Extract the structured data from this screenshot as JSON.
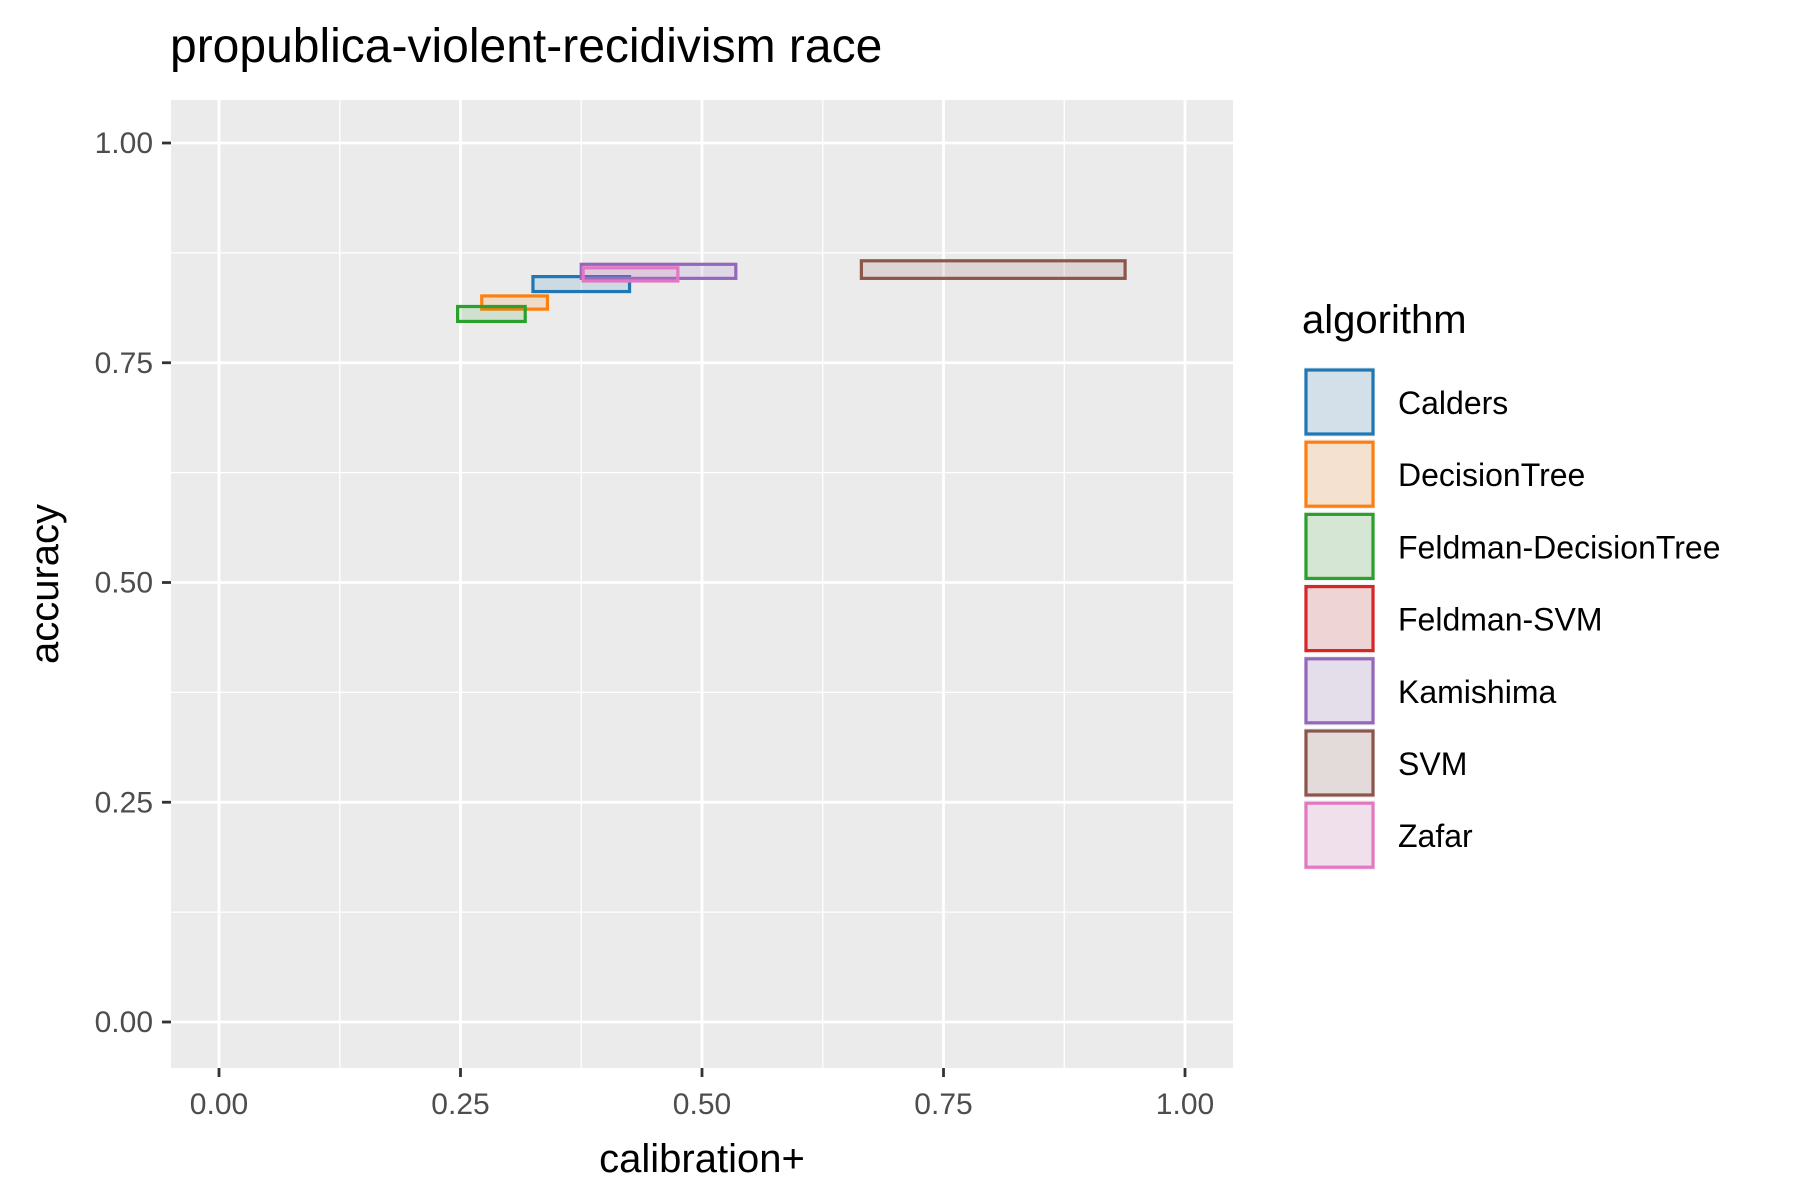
{
  "chart_data": {
    "type": "rect-range",
    "title": "propublica-violent-recidivism race",
    "xlabel": "calibration+",
    "ylabel": "accuracy",
    "xlim": [
      -0.05,
      1.05
    ],
    "ylim": [
      -0.05,
      1.05
    ],
    "x_ticks": [
      0.0,
      0.25,
      0.5,
      0.75,
      1.0
    ],
    "x_tick_labels": [
      "0.00",
      "0.25",
      "0.50",
      "0.75",
      "1.00"
    ],
    "y_ticks": [
      0.0,
      0.25,
      0.5,
      0.75,
      1.0
    ],
    "y_tick_labels": [
      "0.00",
      "0.25",
      "0.50",
      "0.75",
      "1.00"
    ],
    "grid": true,
    "legend": {
      "title": "algorithm",
      "position": "right"
    },
    "series": [
      {
        "name": "Calders",
        "color": "#1f77b4",
        "x_min": 0.325,
        "x_max": 0.425,
        "y_min": 0.831,
        "y_max": 0.848
      },
      {
        "name": "DecisionTree",
        "color": "#ff7f0e",
        "x_min": 0.272,
        "x_max": 0.34,
        "y_min": 0.811,
        "y_max": 0.826
      },
      {
        "name": "Feldman-DecisionTree",
        "color": "#2ca02c",
        "x_min": 0.247,
        "x_max": 0.317,
        "y_min": 0.797,
        "y_max": 0.814
      },
      {
        "name": "Feldman-SVM",
        "color": "#d62728",
        "x_min": null,
        "x_max": null,
        "y_min": null,
        "y_max": null
      },
      {
        "name": "Kamishima",
        "color": "#9467bd",
        "x_min": 0.375,
        "x_max": 0.535,
        "y_min": 0.846,
        "y_max": 0.862
      },
      {
        "name": "SVM",
        "color": "#8c564b",
        "x_min": 0.665,
        "x_max": 0.938,
        "y_min": 0.846,
        "y_max": 0.866
      },
      {
        "name": "Zafar",
        "color": "#e377c2",
        "x_min": 0.377,
        "x_max": 0.475,
        "y_min": 0.843,
        "y_max": 0.858
      }
    ]
  }
}
